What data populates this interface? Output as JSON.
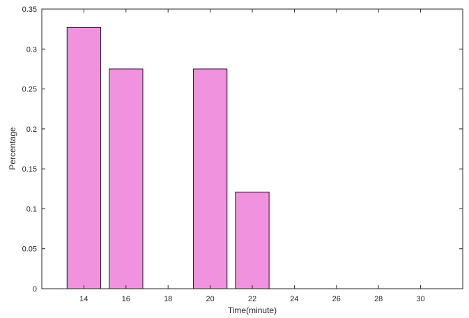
{
  "chart_data": {
    "type": "bar",
    "categories": [
      14,
      16,
      18,
      20,
      22,
      24,
      26,
      28,
      30
    ],
    "values": [
      0.327,
      0.275,
      0,
      0.275,
      0.121,
      0,
      0,
      0,
      0
    ],
    "xlabel": "Time(minute)",
    "ylabel": "Percentage",
    "xlim": [
      12,
      32
    ],
    "ylim": [
      0,
      0.35
    ],
    "xticks": [
      "14",
      "16",
      "18",
      "20",
      "22",
      "24",
      "26",
      "28",
      "30"
    ],
    "yticks": [
      "0",
      "0.05",
      "0.1",
      "0.15",
      "0.2",
      "0.25",
      "0.3",
      "0.35"
    ],
    "bar_width": 1.6,
    "grid": false,
    "colors": {
      "bar_fill": "#f092de",
      "bar_edge": "#1a1a1a",
      "axis": "#262626"
    }
  }
}
